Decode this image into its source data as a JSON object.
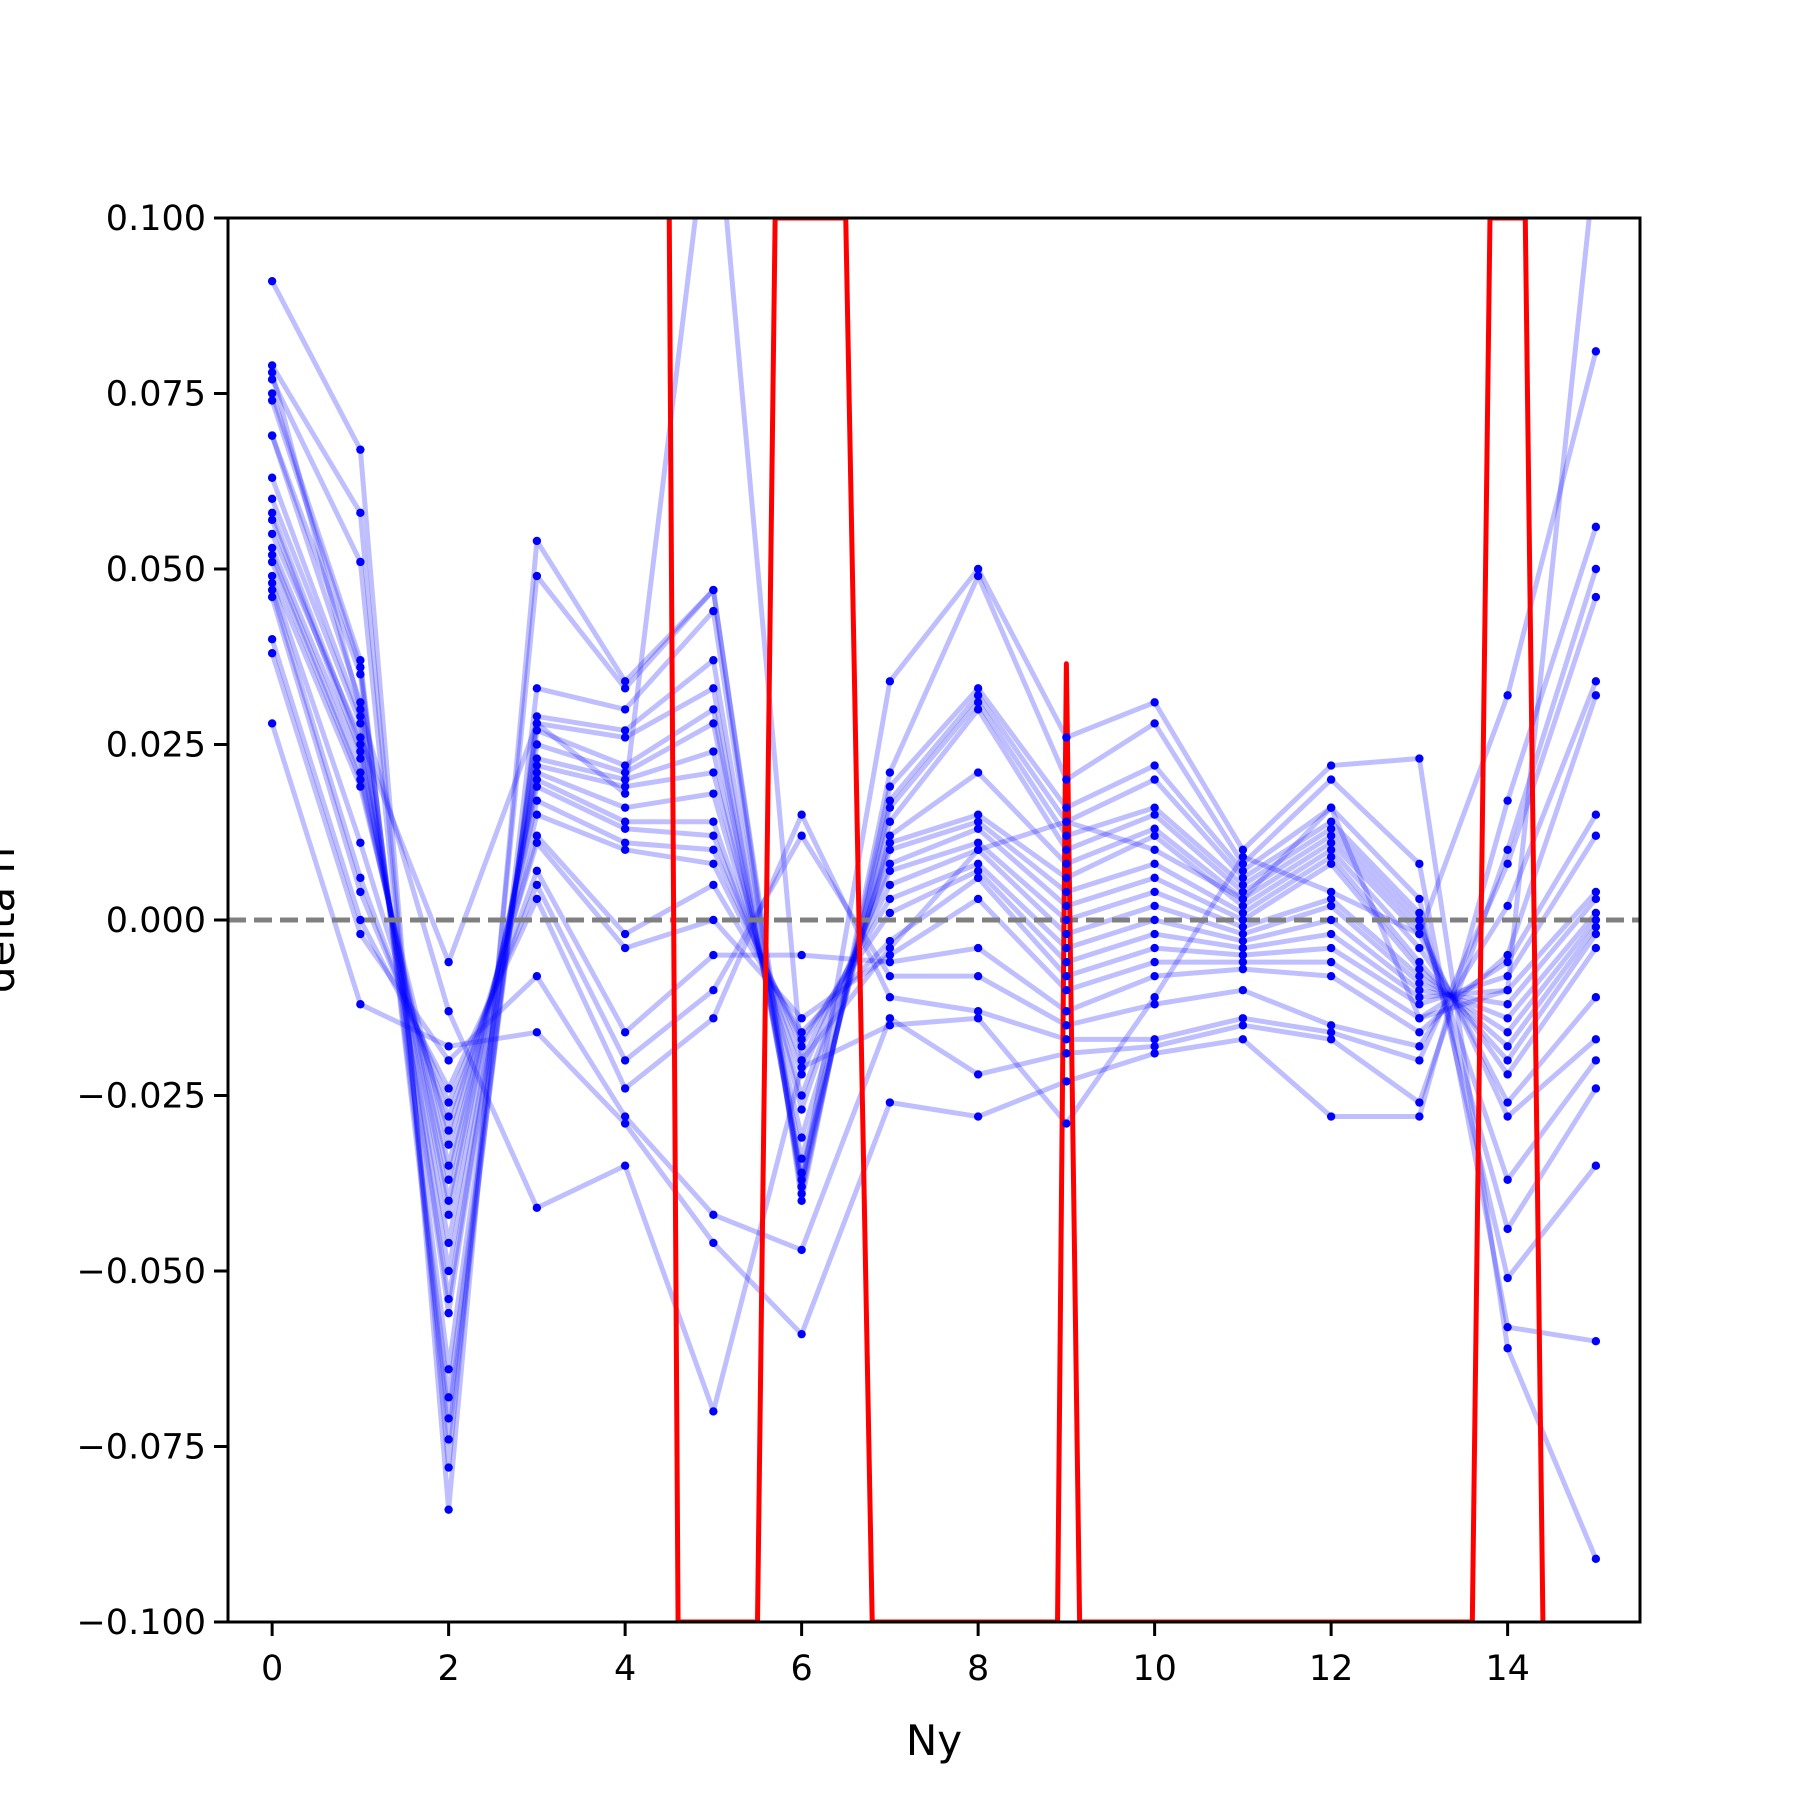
{
  "chart_data": {
    "type": "line",
    "title": "",
    "xlabel": "Ny",
    "ylabel": "delta n",
    "xlim": [
      -0.5,
      15.5
    ],
    "ylim": [
      -0.1,
      0.1
    ],
    "x_ticks": [
      0,
      2,
      4,
      6,
      8,
      10,
      12,
      14
    ],
    "x_tick_labels": [
      "0",
      "2",
      "4",
      "6",
      "8",
      "10",
      "12",
      "14"
    ],
    "y_ticks": [
      -0.1,
      -0.075,
      -0.05,
      -0.025,
      0.0,
      0.025,
      0.05,
      0.075,
      0.1
    ],
    "y_tick_labels": [
      "−0.100",
      "−0.075",
      "−0.050",
      "−0.025",
      "0.000",
      "0.025",
      "0.050",
      "0.075",
      "0.100"
    ],
    "reference_line": {
      "y": 0.0,
      "style": "dashed",
      "color": "#808080"
    },
    "grid": false,
    "legend": "none",
    "colors": {
      "series": "#0000ff",
      "series_alpha": 0.25,
      "outlier": "#ff0000"
    },
    "x": [
      0,
      1,
      2,
      3,
      4,
      5,
      6,
      7,
      8,
      9,
      10,
      11,
      12,
      13,
      14,
      15
    ],
    "series": [
      {
        "values": [
          0.091,
          0.067,
          -0.084,
          0.054,
          0.034,
          0.047,
          -0.038,
          0.034,
          0.05,
          0.026,
          0.031,
          0.01,
          0.022,
          0.023,
          -0.061,
          -0.091
        ]
      },
      {
        "values": [
          0.079,
          0.058,
          -0.078,
          0.049,
          0.033,
          0.047,
          -0.04,
          0.021,
          0.049,
          0.02,
          0.028,
          0.008,
          0.02,
          0.008,
          -0.058,
          -0.06
        ]
      },
      {
        "values": [
          0.077,
          0.051,
          -0.074,
          0.033,
          0.03,
          0.044,
          -0.039,
          0.019,
          0.033,
          0.016,
          0.022,
          0.007,
          0.016,
          0.003,
          -0.051,
          -0.035
        ]
      },
      {
        "values": [
          0.075,
          0.037,
          -0.071,
          0.029,
          0.027,
          0.037,
          -0.038,
          0.017,
          0.032,
          0.014,
          0.02,
          0.006,
          0.014,
          0.001,
          -0.044,
          -0.024
        ]
      },
      {
        "values": [
          0.074,
          0.036,
          -0.068,
          0.028,
          0.026,
          0.033,
          -0.037,
          0.016,
          0.031,
          0.012,
          0.016,
          0.005,
          0.013,
          0.0,
          -0.037,
          -0.02
        ]
      },
      {
        "values": [
          0.069,
          0.035,
          -0.064,
          0.027,
          0.022,
          0.03,
          -0.036,
          0.014,
          0.03,
          0.01,
          0.015,
          0.004,
          0.012,
          -0.001,
          -0.028,
          -0.017
        ]
      },
      {
        "values": [
          0.069,
          0.031,
          -0.056,
          0.025,
          0.021,
          0.028,
          -0.034,
          0.012,
          0.021,
          0.008,
          0.013,
          0.003,
          0.011,
          -0.002,
          -0.026,
          -0.011
        ]
      },
      {
        "values": [
          0.063,
          0.029,
          -0.054,
          0.023,
          0.02,
          0.024,
          -0.031,
          0.011,
          0.015,
          0.006,
          0.012,
          0.002,
          0.01,
          -0.004,
          -0.022,
          -0.004
        ]
      },
      {
        "values": [
          0.06,
          0.028,
          -0.05,
          0.022,
          0.019,
          0.021,
          -0.027,
          0.01,
          0.014,
          0.004,
          0.008,
          0.001,
          0.009,
          -0.006,
          -0.02,
          -0.002
        ]
      },
      {
        "values": [
          0.058,
          0.025,
          -0.046,
          0.021,
          0.016,
          0.018,
          -0.025,
          0.008,
          0.013,
          0.002,
          0.006,
          0.0,
          0.008,
          -0.007,
          -0.018,
          -0.001
        ]
      },
      {
        "values": [
          0.057,
          0.024,
          -0.042,
          0.02,
          0.014,
          0.014,
          -0.022,
          0.007,
          0.011,
          0.0,
          0.004,
          -0.001,
          0.003,
          -0.008,
          -0.016,
          0.0
        ]
      },
      {
        "values": [
          0.053,
          0.023,
          -0.04,
          0.019,
          0.013,
          0.012,
          -0.02,
          0.005,
          0.01,
          -0.002,
          0.002,
          -0.002,
          0.002,
          -0.009,
          -0.014,
          0.001
        ]
      },
      {
        "values": [
          0.052,
          0.021,
          -0.037,
          0.017,
          0.011,
          0.01,
          -0.018,
          0.003,
          0.008,
          -0.004,
          0.0,
          -0.003,
          0.0,
          -0.01,
          -0.012,
          0.003
        ]
      },
      {
        "values": [
          0.051,
          0.02,
          -0.035,
          0.015,
          0.01,
          0.008,
          -0.017,
          0.001,
          0.007,
          -0.006,
          -0.002,
          -0.004,
          -0.002,
          -0.011,
          -0.01,
          0.004
        ]
      },
      {
        "values": [
          0.049,
          0.019,
          -0.032,
          0.012,
          -0.002,
          0.005,
          -0.016,
          -0.003,
          0.006,
          -0.008,
          -0.004,
          -0.005,
          -0.004,
          -0.012,
          -0.008,
          0.012
        ]
      },
      {
        "values": [
          0.048,
          0.011,
          -0.03,
          0.011,
          -0.004,
          0.0,
          -0.014,
          -0.005,
          0.003,
          -0.01,
          -0.006,
          -0.006,
          -0.006,
          -0.014,
          -0.006,
          0.015
        ]
      },
      {
        "values": [
          0.047,
          0.006,
          -0.028,
          0.007,
          -0.016,
          -0.005,
          -0.005,
          -0.006,
          -0.004,
          -0.013,
          -0.008,
          -0.007,
          -0.008,
          -0.016,
          -0.005,
          0.032
        ]
      },
      {
        "values": [
          0.046,
          0.004,
          -0.026,
          0.005,
          -0.02,
          -0.01,
          0.012,
          -0.008,
          -0.008,
          -0.015,
          -0.012,
          -0.01,
          -0.015,
          -0.018,
          0.002,
          0.034
        ]
      },
      {
        "values": [
          0.04,
          0.0,
          -0.024,
          0.003,
          -0.024,
          -0.014,
          0.015,
          -0.011,
          -0.013,
          -0.017,
          -0.017,
          -0.014,
          -0.016,
          -0.02,
          0.008,
          0.046
        ]
      },
      {
        "values": [
          0.038,
          -0.002,
          -0.02,
          -0.008,
          -0.028,
          -0.042,
          -0.047,
          -0.014,
          -0.022,
          -0.019,
          -0.018,
          -0.015,
          -0.017,
          -0.026,
          0.01,
          0.05
        ]
      },
      {
        "values": [
          0.028,
          -0.012,
          -0.018,
          -0.016,
          -0.029,
          -0.046,
          -0.059,
          -0.026,
          -0.028,
          -0.023,
          -0.019,
          -0.017,
          -0.028,
          -0.028,
          0.017,
          0.056
        ]
      },
      {
        "values": [
          0.078,
          0.03,
          -0.013,
          -0.041,
          -0.035,
          -0.07,
          -0.021,
          -0.015,
          -0.014,
          -0.029,
          -0.011,
          0.009,
          0.004,
          -0.002,
          0.032,
          0.081
        ]
      },
      {
        "values": [
          0.055,
          0.026,
          -0.006,
          0.028,
          0.018,
          0.121,
          -0.02,
          -0.004,
          0.01,
          0.014,
          0.01,
          0.003,
          0.016,
          -0.014,
          -0.01,
          0.109
        ]
      }
    ],
    "outlier_series": {
      "x": [
        4.5,
        4.6,
        5.5,
        5.7,
        6.5,
        6.8,
        8.9,
        9.0,
        9.15,
        13.6,
        13.8,
        14.2,
        14.4
      ],
      "values": [
        0.1,
        -0.1,
        -0.1,
        0.1,
        0.1,
        -0.1,
        -0.1,
        0.0365,
        -0.1,
        -0.1,
        0.1,
        0.1,
        -0.1
      ]
    }
  }
}
